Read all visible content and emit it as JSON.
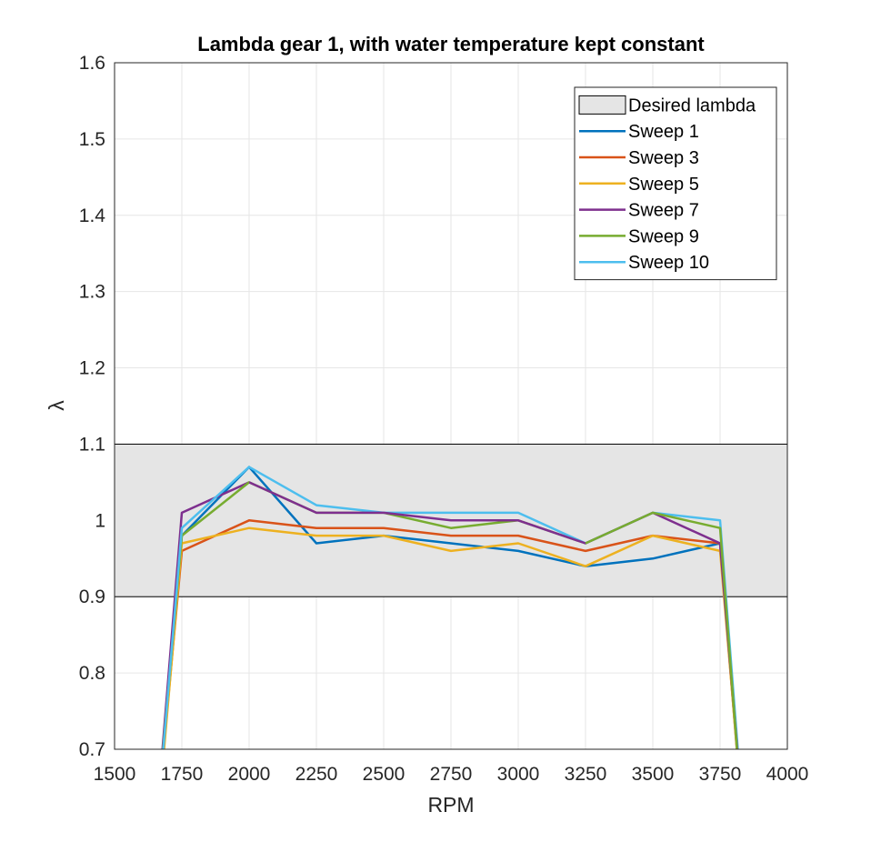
{
  "chart_data": {
    "type": "line",
    "title": "Lambda gear 1, with water temperature kept constant",
    "xlabel": "RPM",
    "ylabel": "λ",
    "xlim": [
      1500,
      4000
    ],
    "ylim": [
      0.7,
      1.6
    ],
    "xticks": [
      "1500",
      "1750",
      "2000",
      "2250",
      "2500",
      "2750",
      "3000",
      "3250",
      "3500",
      "3750",
      "4000"
    ],
    "yticks": [
      "0.7",
      "0.8",
      "0.9",
      "1",
      "1.1",
      "1.2",
      "1.3",
      "1.4",
      "1.5",
      "1.6"
    ],
    "grid": true,
    "legend_position": "top-right",
    "band": {
      "name": "Desired lambda",
      "y_low": 0.9,
      "y_high": 1.1,
      "color": "#e5e5e5"
    },
    "series": [
      {
        "name": "Sweep 1",
        "color": "#0072bd",
        "x": [
          1680,
          1750,
          2000,
          2250,
          2500,
          2750,
          3000,
          3250,
          3500,
          3750,
          3815
        ],
        "y": [
          0.7,
          0.98,
          1.07,
          0.97,
          0.98,
          0.97,
          0.96,
          0.94,
          0.95,
          0.97,
          0.7
        ]
      },
      {
        "name": "Sweep 3",
        "color": "#d95319",
        "x": [
          1682,
          1750,
          2000,
          2250,
          2500,
          2750,
          3000,
          3250,
          3500,
          3750,
          3812
        ],
        "y": [
          0.7,
          0.96,
          1.0,
          0.99,
          0.99,
          0.98,
          0.98,
          0.96,
          0.98,
          0.97,
          0.7
        ]
      },
      {
        "name": "Sweep 5",
        "color": "#edb120",
        "x": [
          1684,
          1750,
          2000,
          2250,
          2500,
          2750,
          3000,
          3250,
          3500,
          3750,
          3813
        ],
        "y": [
          0.7,
          0.97,
          0.99,
          0.98,
          0.98,
          0.96,
          0.97,
          0.94,
          0.98,
          0.96,
          0.7
        ]
      },
      {
        "name": "Sweep 7",
        "color": "#7e2f8e",
        "x": [
          1678,
          1750,
          2000
        ],
        "y": [
          0.7,
          1.01,
          1.05
        ]
      },
      {
        "name": "Sweep 9",
        "color": "#77ac30",
        "x": [
          1680,
          1750,
          2000,
          2250,
          2500,
          2750,
          3000,
          3250
        ],
        "y": [
          0.7,
          0.98,
          1.05,
          1.01,
          1.01,
          0.99,
          1.0,
          0.97
        ]
      },
      {
        "name": "Sweep 10",
        "color": "#4dbeee",
        "x": [
          1681,
          1750,
          2000,
          2250,
          2500,
          2750,
          3000,
          3250,
          3500,
          3750,
          3816
        ],
        "y": [
          0.7,
          0.99,
          1.07,
          1.02,
          1.01,
          1.01,
          1.01,
          0.97,
          1.01,
          1.0,
          0.7
        ]
      }
    ],
    "extra_segments": [
      {
        "color": "#7e2f8e",
        "x": [
          2000,
          2250,
          2500,
          2750,
          3000,
          3250,
          3500,
          3750,
          3814
        ],
        "y": [
          1.05,
          1.01,
          1.01,
          1.0,
          1.0,
          0.97,
          1.01,
          0.97,
          0.7
        ]
      },
      {
        "color": "#77ac30",
        "x": [
          3250,
          3500,
          3750,
          3813
        ],
        "y": [
          0.97,
          1.01,
          0.99,
          0.7
        ]
      }
    ]
  }
}
